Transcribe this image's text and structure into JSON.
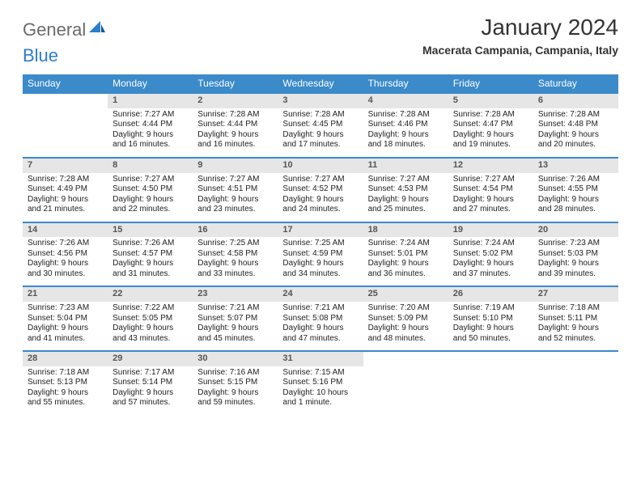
{
  "brand": {
    "word1": "General",
    "word2": "Blue"
  },
  "title": "January 2024",
  "location": "Macerata Campania, Campania, Italy",
  "day_headers": [
    "Sunday",
    "Monday",
    "Tuesday",
    "Wednesday",
    "Thursday",
    "Friday",
    "Saturday"
  ],
  "weeks": [
    {
      "nums": [
        "",
        "1",
        "2",
        "3",
        "4",
        "5",
        "6"
      ],
      "cells": [
        null,
        {
          "sunrise": "Sunrise: 7:27 AM",
          "sunset": "Sunset: 4:44 PM",
          "day1": "Daylight: 9 hours",
          "day2": "and 16 minutes."
        },
        {
          "sunrise": "Sunrise: 7:28 AM",
          "sunset": "Sunset: 4:44 PM",
          "day1": "Daylight: 9 hours",
          "day2": "and 16 minutes."
        },
        {
          "sunrise": "Sunrise: 7:28 AM",
          "sunset": "Sunset: 4:45 PM",
          "day1": "Daylight: 9 hours",
          "day2": "and 17 minutes."
        },
        {
          "sunrise": "Sunrise: 7:28 AM",
          "sunset": "Sunset: 4:46 PM",
          "day1": "Daylight: 9 hours",
          "day2": "and 18 minutes."
        },
        {
          "sunrise": "Sunrise: 7:28 AM",
          "sunset": "Sunset: 4:47 PM",
          "day1": "Daylight: 9 hours",
          "day2": "and 19 minutes."
        },
        {
          "sunrise": "Sunrise: 7:28 AM",
          "sunset": "Sunset: 4:48 PM",
          "day1": "Daylight: 9 hours",
          "day2": "and 20 minutes."
        }
      ]
    },
    {
      "nums": [
        "7",
        "8",
        "9",
        "10",
        "11",
        "12",
        "13"
      ],
      "cells": [
        {
          "sunrise": "Sunrise: 7:28 AM",
          "sunset": "Sunset: 4:49 PM",
          "day1": "Daylight: 9 hours",
          "day2": "and 21 minutes."
        },
        {
          "sunrise": "Sunrise: 7:27 AM",
          "sunset": "Sunset: 4:50 PM",
          "day1": "Daylight: 9 hours",
          "day2": "and 22 minutes."
        },
        {
          "sunrise": "Sunrise: 7:27 AM",
          "sunset": "Sunset: 4:51 PM",
          "day1": "Daylight: 9 hours",
          "day2": "and 23 minutes."
        },
        {
          "sunrise": "Sunrise: 7:27 AM",
          "sunset": "Sunset: 4:52 PM",
          "day1": "Daylight: 9 hours",
          "day2": "and 24 minutes."
        },
        {
          "sunrise": "Sunrise: 7:27 AM",
          "sunset": "Sunset: 4:53 PM",
          "day1": "Daylight: 9 hours",
          "day2": "and 25 minutes."
        },
        {
          "sunrise": "Sunrise: 7:27 AM",
          "sunset": "Sunset: 4:54 PM",
          "day1": "Daylight: 9 hours",
          "day2": "and 27 minutes."
        },
        {
          "sunrise": "Sunrise: 7:26 AM",
          "sunset": "Sunset: 4:55 PM",
          "day1": "Daylight: 9 hours",
          "day2": "and 28 minutes."
        }
      ]
    },
    {
      "nums": [
        "14",
        "15",
        "16",
        "17",
        "18",
        "19",
        "20"
      ],
      "cells": [
        {
          "sunrise": "Sunrise: 7:26 AM",
          "sunset": "Sunset: 4:56 PM",
          "day1": "Daylight: 9 hours",
          "day2": "and 30 minutes."
        },
        {
          "sunrise": "Sunrise: 7:26 AM",
          "sunset": "Sunset: 4:57 PM",
          "day1": "Daylight: 9 hours",
          "day2": "and 31 minutes."
        },
        {
          "sunrise": "Sunrise: 7:25 AM",
          "sunset": "Sunset: 4:58 PM",
          "day1": "Daylight: 9 hours",
          "day2": "and 33 minutes."
        },
        {
          "sunrise": "Sunrise: 7:25 AM",
          "sunset": "Sunset: 4:59 PM",
          "day1": "Daylight: 9 hours",
          "day2": "and 34 minutes."
        },
        {
          "sunrise": "Sunrise: 7:24 AM",
          "sunset": "Sunset: 5:01 PM",
          "day1": "Daylight: 9 hours",
          "day2": "and 36 minutes."
        },
        {
          "sunrise": "Sunrise: 7:24 AM",
          "sunset": "Sunset: 5:02 PM",
          "day1": "Daylight: 9 hours",
          "day2": "and 37 minutes."
        },
        {
          "sunrise": "Sunrise: 7:23 AM",
          "sunset": "Sunset: 5:03 PM",
          "day1": "Daylight: 9 hours",
          "day2": "and 39 minutes."
        }
      ]
    },
    {
      "nums": [
        "21",
        "22",
        "23",
        "24",
        "25",
        "26",
        "27"
      ],
      "cells": [
        {
          "sunrise": "Sunrise: 7:23 AM",
          "sunset": "Sunset: 5:04 PM",
          "day1": "Daylight: 9 hours",
          "day2": "and 41 minutes."
        },
        {
          "sunrise": "Sunrise: 7:22 AM",
          "sunset": "Sunset: 5:05 PM",
          "day1": "Daylight: 9 hours",
          "day2": "and 43 minutes."
        },
        {
          "sunrise": "Sunrise: 7:21 AM",
          "sunset": "Sunset: 5:07 PM",
          "day1": "Daylight: 9 hours",
          "day2": "and 45 minutes."
        },
        {
          "sunrise": "Sunrise: 7:21 AM",
          "sunset": "Sunset: 5:08 PM",
          "day1": "Daylight: 9 hours",
          "day2": "and 47 minutes."
        },
        {
          "sunrise": "Sunrise: 7:20 AM",
          "sunset": "Sunset: 5:09 PM",
          "day1": "Daylight: 9 hours",
          "day2": "and 48 minutes."
        },
        {
          "sunrise": "Sunrise: 7:19 AM",
          "sunset": "Sunset: 5:10 PM",
          "day1": "Daylight: 9 hours",
          "day2": "and 50 minutes."
        },
        {
          "sunrise": "Sunrise: 7:18 AM",
          "sunset": "Sunset: 5:11 PM",
          "day1": "Daylight: 9 hours",
          "day2": "and 52 minutes."
        }
      ]
    },
    {
      "nums": [
        "28",
        "29",
        "30",
        "31",
        "",
        "",
        ""
      ],
      "cells": [
        {
          "sunrise": "Sunrise: 7:18 AM",
          "sunset": "Sunset: 5:13 PM",
          "day1": "Daylight: 9 hours",
          "day2": "and 55 minutes."
        },
        {
          "sunrise": "Sunrise: 7:17 AM",
          "sunset": "Sunset: 5:14 PM",
          "day1": "Daylight: 9 hours",
          "day2": "and 57 minutes."
        },
        {
          "sunrise": "Sunrise: 7:16 AM",
          "sunset": "Sunset: 5:15 PM",
          "day1": "Daylight: 9 hours",
          "day2": "and 59 minutes."
        },
        {
          "sunrise": "Sunrise: 7:15 AM",
          "sunset": "Sunset: 5:16 PM",
          "day1": "Daylight: 10 hours",
          "day2": "and 1 minute."
        },
        null,
        null,
        null
      ]
    }
  ],
  "colors": {
    "header_bg": "#3b8aca",
    "daynum_bg": "#e6e6e6",
    "border": "#3b8aca"
  }
}
